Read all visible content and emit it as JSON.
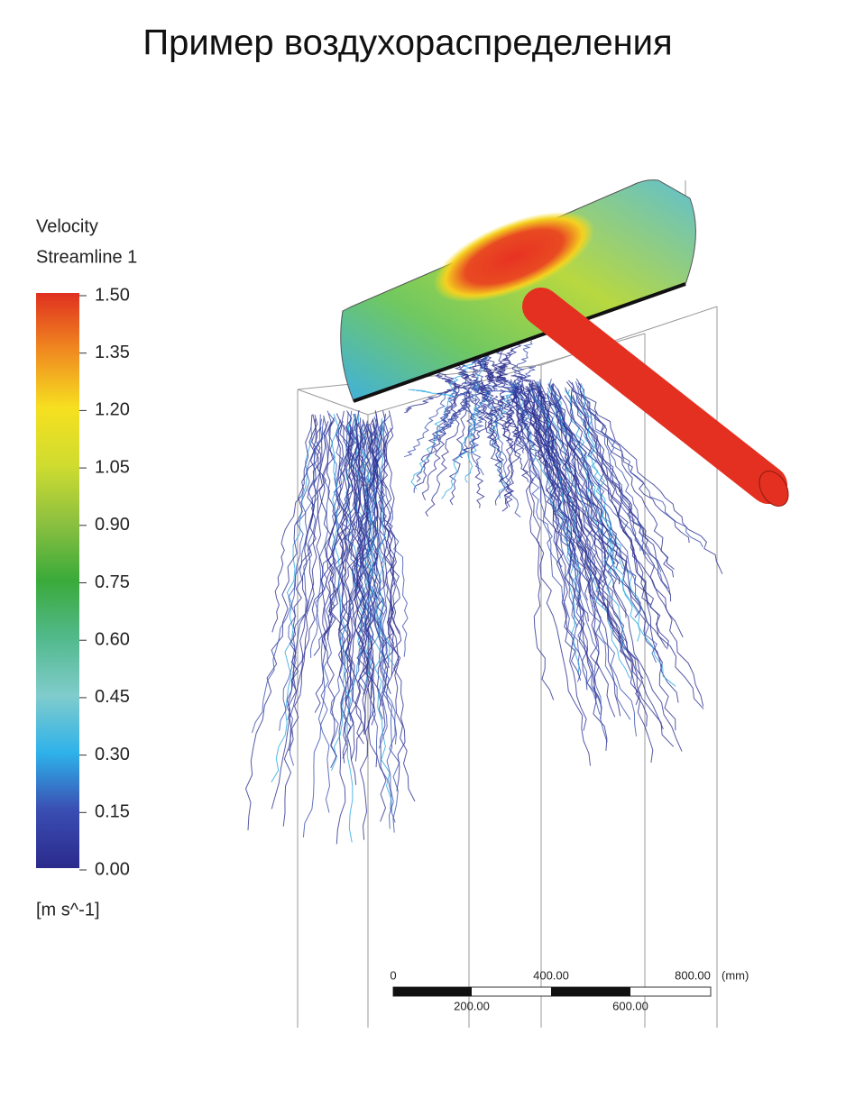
{
  "header": {
    "title": "Пример воздухораспределения"
  },
  "legend": {
    "title": "Velocity",
    "subtitle": "Streamline 1",
    "ticks": [
      "1.50",
      "1.35",
      "1.20",
      "1.05",
      "0.90",
      "0.75",
      "0.60",
      "0.45",
      "0.30",
      "0.15",
      "0.00"
    ],
    "unit": "[m s^-1]"
  },
  "scale_bar": {
    "top_labels": [
      "0",
      "400.00",
      "800.00"
    ],
    "bottom_labels": [
      "200.00",
      "600.00"
    ],
    "unit": "(mm)"
  }
}
